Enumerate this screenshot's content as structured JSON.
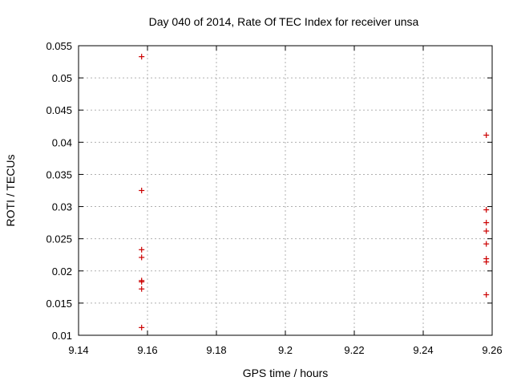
{
  "chart_data": {
    "type": "scatter",
    "title": "Day 040 of 2014, Rate Of TEC Index for receiver unsa",
    "xlabel": "GPS time / hours",
    "ylabel": "ROTI / TECUs",
    "xlim": [
      9.14,
      9.26
    ],
    "ylim": [
      0.01,
      0.055
    ],
    "xticks": [
      9.14,
      9.16,
      9.18,
      9.2,
      9.22,
      9.24,
      9.26
    ],
    "xtick_labels": [
      "9.14",
      "9.16",
      "9.18",
      "9.2",
      "9.22",
      "9.24",
      "9.26"
    ],
    "yticks": [
      0.01,
      0.015,
      0.02,
      0.025,
      0.03,
      0.035,
      0.04,
      0.045,
      0.05,
      0.055
    ],
    "ytick_labels": [
      "0.01",
      "0.015",
      "0.02",
      "0.025",
      "0.03",
      "0.035",
      "0.04",
      "0.045",
      "0.05",
      "0.055"
    ],
    "grid": true,
    "marker": "+",
    "color": "#cc0000",
    "series": [
      {
        "name": "ROTI",
        "points": [
          {
            "x": 9.1583,
            "y": 0.0533
          },
          {
            "x": 9.1583,
            "y": 0.0325
          },
          {
            "x": 9.1583,
            "y": 0.0233
          },
          {
            "x": 9.1583,
            "y": 0.0221
          },
          {
            "x": 9.1583,
            "y": 0.0185
          },
          {
            "x": 9.1583,
            "y": 0.0183
          },
          {
            "x": 9.1583,
            "y": 0.0172
          },
          {
            "x": 9.1583,
            "y": 0.0112
          },
          {
            "x": 9.2583,
            "y": 0.0411
          },
          {
            "x": 9.2583,
            "y": 0.0295
          },
          {
            "x": 9.2583,
            "y": 0.0275
          },
          {
            "x": 9.2583,
            "y": 0.0262
          },
          {
            "x": 9.2583,
            "y": 0.0242
          },
          {
            "x": 9.2583,
            "y": 0.0219
          },
          {
            "x": 9.2583,
            "y": 0.0214
          },
          {
            "x": 9.2583,
            "y": 0.0163
          }
        ]
      }
    ]
  }
}
